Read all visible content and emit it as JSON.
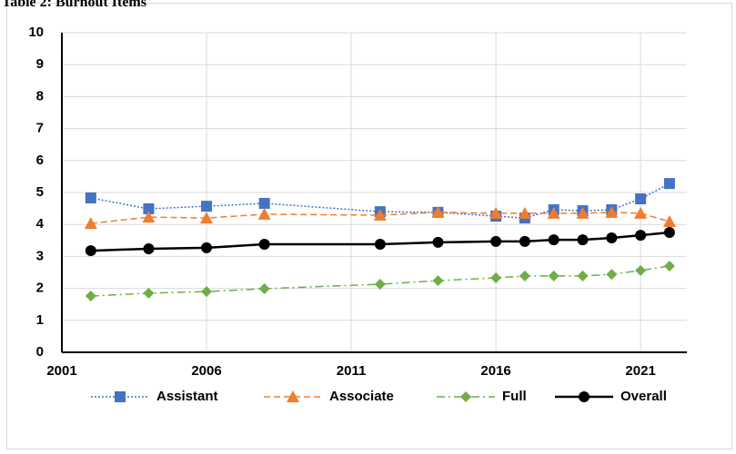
{
  "chart_data": {
    "type": "line",
    "title": "Table 2: Burnout Items",
    "x": [
      2002,
      2004,
      2006,
      2008,
      2012,
      2014,
      2016,
      2017,
      2018,
      2019,
      2020,
      2021,
      2022
    ],
    "series": [
      {
        "name": "Assistant",
        "color": "#4472c4",
        "marker": "square",
        "line_style": "dotted",
        "values": [
          4.83,
          4.49,
          4.57,
          4.66,
          4.4,
          4.38,
          4.26,
          4.2,
          4.46,
          4.43,
          4.46,
          4.8,
          5.28
        ]
      },
      {
        "name": "Associate",
        "color": "#ed7d31",
        "marker": "triangle",
        "line_style": "dashed",
        "values": [
          4.03,
          4.23,
          4.2,
          4.32,
          4.29,
          4.38,
          4.35,
          4.35,
          4.35,
          4.35,
          4.38,
          4.35,
          4.09
        ]
      },
      {
        "name": "Full",
        "color": "#70ad47",
        "marker": "diamond",
        "line_style": "dashdot",
        "values": [
          1.76,
          1.85,
          1.9,
          1.99,
          2.13,
          2.24,
          2.33,
          2.39,
          2.39,
          2.39,
          2.44,
          2.56,
          2.7
        ]
      },
      {
        "name": "Overall",
        "color": "#000000",
        "marker": "circle",
        "line_style": "solid",
        "values": [
          3.18,
          3.24,
          3.27,
          3.38,
          3.38,
          3.44,
          3.47,
          3.47,
          3.52,
          3.52,
          3.58,
          3.66,
          3.75
        ]
      }
    ],
    "xlim": [
      2001,
      2022.6
    ],
    "xticks": [
      2001,
      2006,
      2011,
      2016,
      2021
    ],
    "ylim": [
      0,
      10
    ],
    "yticks": [
      0,
      1,
      2,
      3,
      4,
      5,
      6,
      7,
      8,
      9,
      10
    ],
    "grid": true,
    "legend": "bottom"
  }
}
